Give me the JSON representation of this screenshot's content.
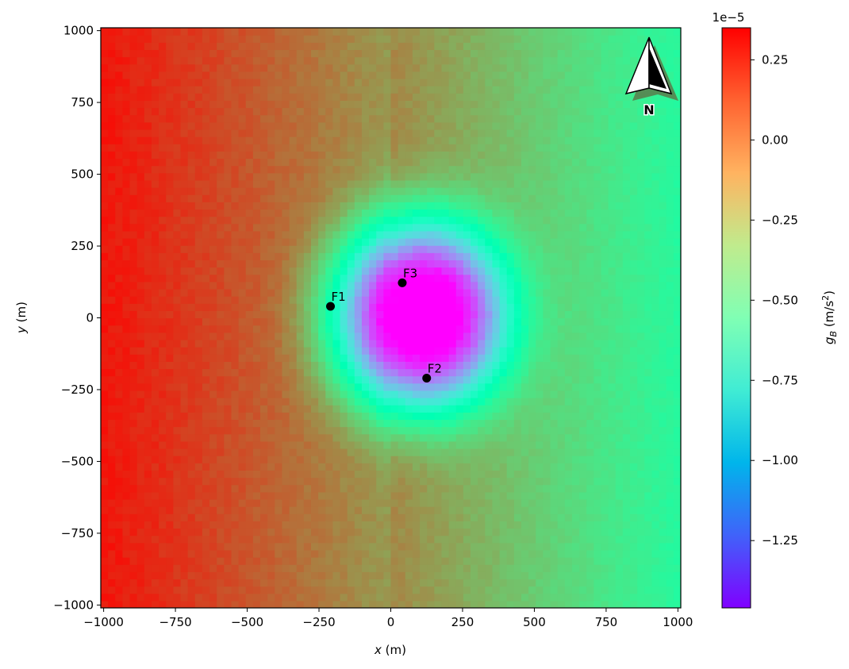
{
  "chart_data": {
    "type": "heatmap",
    "xlabel": {
      "var": "x",
      "unit": " (m)"
    },
    "ylabel": {
      "var": "y",
      "unit": " (m)"
    },
    "xlim": [
      -1010,
      1010
    ],
    "ylim": [
      -1010,
      1010
    ],
    "xticks": [
      -1000,
      -750,
      -500,
      -250,
      0,
      250,
      500,
      750,
      1000
    ],
    "yticks": [
      -1000,
      -750,
      -500,
      -250,
      0,
      250,
      500,
      750,
      1000
    ],
    "xtick_labels": [
      "−1000",
      "−750",
      "−500",
      "−250",
      "0",
      "250",
      "500",
      "750",
      "1000"
    ],
    "ytick_labels": [
      "−1000",
      "−750",
      "−500",
      "−250",
      "0",
      "250",
      "500",
      "750",
      "1000"
    ],
    "grid": false,
    "colormap": "rainbow",
    "field": {
      "description_units": "m/s^2 (x1e-5)",
      "value_range": [
        -1.46,
        0.35
      ],
      "regional_west_value": 0.3,
      "regional_east_value": -0.42,
      "anomaly_center": [
        100,
        10
      ],
      "anomaly_radius_x": 300,
      "anomaly_radius_y": 330,
      "anomaly_amplitude": -1.56
    },
    "points": [
      {
        "label": "F1",
        "x": -210,
        "y": 40
      },
      {
        "label": "F2",
        "x": 125,
        "y": -210
      },
      {
        "label": "F3",
        "x": 40,
        "y": 122
      }
    ],
    "colorbar": {
      "multiplier": "1e−5",
      "label": {
        "var": "g",
        "sub": "B",
        "unit_pre": " (m/s",
        "unit_sup": "2",
        "unit_post": ")"
      },
      "vmin": -1.46,
      "vmax": 0.35,
      "ticks": [
        0.25,
        0.0,
        -0.25,
        -0.5,
        -0.75,
        -1.0,
        -1.25
      ],
      "tick_labels": [
        "0.25",
        "0.00",
        "−0.25",
        "−0.50",
        "−0.75",
        "−1.00",
        "−1.25"
      ]
    },
    "north_arrow": {
      "label": "N",
      "placement": "top-right"
    }
  }
}
